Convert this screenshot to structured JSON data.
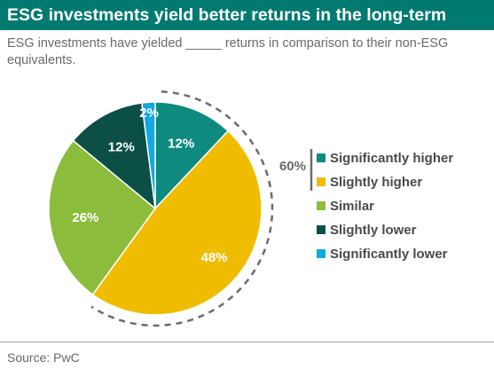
{
  "chart_data": {
    "type": "pie",
    "title": "ESG investments yield better returns in the long-term",
    "subtitle": "ESG investments have yielded _____ returns in comparison to their non-ESG equivalents.",
    "slices": [
      {
        "name": "Significantly higher",
        "value": 12,
        "label": "12%",
        "color": "#0e8a7f"
      },
      {
        "name": "Slightly higher",
        "value": 48,
        "label": "48%",
        "color": "#f0bc00"
      },
      {
        "name": "Similar",
        "value": 26,
        "label": "26%",
        "color": "#8cbc3c"
      },
      {
        "name": "Slightly lower",
        "value": 12,
        "label": "12%",
        "color": "#0b4f47"
      },
      {
        "name": "Significantly lower",
        "value": 2,
        "label": "2%",
        "color": "#12a8e0"
      }
    ],
    "bracket_label": "60%",
    "legend_position": "right",
    "source": "Source: PwC"
  }
}
